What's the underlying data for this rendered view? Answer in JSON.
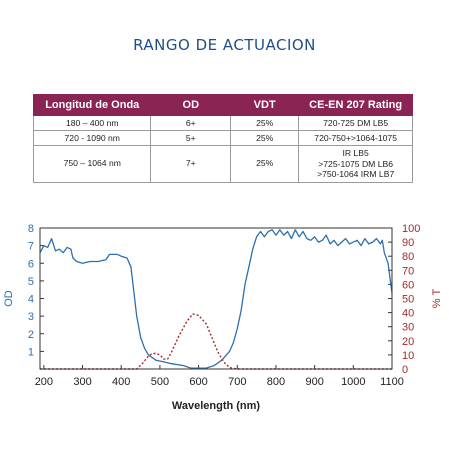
{
  "page_title": "RANGO DE ACTUACION",
  "spec_table": {
    "headers": [
      "Longitud de Onda",
      "OD",
      "VDT",
      "CE-EN 207 Rating"
    ],
    "rows": [
      {
        "wavelength": "180 – 400 nm",
        "od": "6+",
        "vdt": "25%",
        "rating": [
          "720-725 DM LB5"
        ]
      },
      {
        "wavelength": "720 - 1090 nm",
        "od": "5+",
        "vdt": "25%",
        "rating": [
          "720-750+>1064-1075"
        ]
      },
      {
        "wavelength": "750 – 1064 nm",
        "od": "7+",
        "vdt": "25%",
        "rating": [
          "IR LB5",
          ">725-1075 DM LB6",
          ">750-1064 IRM LB7"
        ]
      }
    ]
  },
  "chart_data": {
    "type": "line",
    "title": "",
    "xlabel": "Wavelength (nm)",
    "ylabel_left": "OD",
    "ylabel_right": "% T",
    "xlim": [
      190,
      1100
    ],
    "ylim_left": [
      0,
      8
    ],
    "ylim_right": [
      0,
      100
    ],
    "x_ticks": [
      200,
      300,
      400,
      500,
      600,
      700,
      800,
      900,
      1000,
      1100
    ],
    "y_left_ticks": [
      1,
      2,
      3,
      4,
      5,
      6,
      7,
      8
    ],
    "y_right_ticks": [
      0,
      10,
      20,
      30,
      40,
      50,
      60,
      70,
      80,
      90,
      100
    ],
    "grid": false,
    "series": [
      {
        "axis": "left",
        "color": "#2c6fad",
        "style": "solid",
        "points": [
          [
            190,
            6.6
          ],
          [
            200,
            7.0
          ],
          [
            210,
            6.9
          ],
          [
            220,
            7.4
          ],
          [
            230,
            6.7
          ],
          [
            240,
            6.8
          ],
          [
            250,
            6.6
          ],
          [
            260,
            6.9
          ],
          [
            270,
            6.8
          ],
          [
            275,
            6.3
          ],
          [
            285,
            6.1
          ],
          [
            300,
            6.0
          ],
          [
            320,
            6.1
          ],
          [
            340,
            6.1
          ],
          [
            360,
            6.2
          ],
          [
            370,
            6.5
          ],
          [
            380,
            6.5
          ],
          [
            390,
            6.5
          ],
          [
            400,
            6.4
          ],
          [
            415,
            6.3
          ],
          [
            425,
            5.8
          ],
          [
            432,
            4.5
          ],
          [
            440,
            3.0
          ],
          [
            450,
            1.8
          ],
          [
            460,
            1.2
          ],
          [
            470,
            0.8
          ],
          [
            490,
            0.5
          ],
          [
            510,
            0.4
          ],
          [
            530,
            0.3
          ],
          [
            560,
            0.2
          ],
          [
            580,
            0.05
          ],
          [
            600,
            0.05
          ],
          [
            620,
            0.05
          ],
          [
            640,
            0.2
          ],
          [
            660,
            0.5
          ],
          [
            680,
            1.0
          ],
          [
            690,
            1.5
          ],
          [
            700,
            2.3
          ],
          [
            710,
            3.3
          ],
          [
            720,
            4.8
          ],
          [
            730,
            5.8
          ],
          [
            740,
            6.8
          ],
          [
            750,
            7.5
          ],
          [
            760,
            7.8
          ],
          [
            770,
            7.5
          ],
          [
            780,
            7.8
          ],
          [
            790,
            7.9
          ],
          [
            800,
            7.6
          ],
          [
            810,
            7.9
          ],
          [
            820,
            7.6
          ],
          [
            830,
            7.8
          ],
          [
            840,
            7.4
          ],
          [
            850,
            7.9
          ],
          [
            860,
            7.5
          ],
          [
            870,
            7.8
          ],
          [
            880,
            7.4
          ],
          [
            890,
            7.3
          ],
          [
            900,
            7.5
          ],
          [
            910,
            7.2
          ],
          [
            920,
            7.3
          ],
          [
            930,
            7.6
          ],
          [
            940,
            7.1
          ],
          [
            950,
            7.3
          ],
          [
            960,
            7.0
          ],
          [
            970,
            7.2
          ],
          [
            980,
            7.4
          ],
          [
            990,
            7.1
          ],
          [
            1000,
            7.2
          ],
          [
            1010,
            7.3
          ],
          [
            1020,
            7.0
          ],
          [
            1030,
            7.4
          ],
          [
            1040,
            7.1
          ],
          [
            1050,
            7.2
          ],
          [
            1060,
            7.4
          ],
          [
            1070,
            7.1
          ],
          [
            1075,
            7.3
          ],
          [
            1080,
            6.6
          ],
          [
            1090,
            6.0
          ],
          [
            1100,
            4.3
          ]
        ]
      },
      {
        "axis": "right",
        "color": "#a52a2a",
        "style": "dotted",
        "points": [
          [
            190,
            0
          ],
          [
            440,
            0
          ],
          [
            455,
            4
          ],
          [
            470,
            9
          ],
          [
            480,
            11
          ],
          [
            490,
            11
          ],
          [
            500,
            10
          ],
          [
            510,
            7
          ],
          [
            520,
            7
          ],
          [
            530,
            12
          ],
          [
            550,
            24
          ],
          [
            570,
            34
          ],
          [
            585,
            39
          ],
          [
            600,
            38
          ],
          [
            620,
            32
          ],
          [
            635,
            22
          ],
          [
            650,
            12
          ],
          [
            665,
            5
          ],
          [
            680,
            1
          ],
          [
            700,
            0
          ],
          [
            1100,
            0
          ]
        ]
      }
    ]
  }
}
